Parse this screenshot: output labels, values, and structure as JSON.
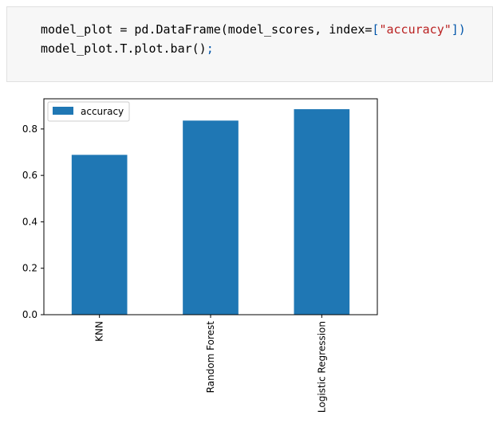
{
  "code_cell": {
    "line1": {
      "pre": "model_plot = pd.DataFrame(model_scores, index=",
      "bracket_open": "[",
      "string": "\"accuracy\"",
      "bracket_close": "])"
    },
    "line2": {
      "pre": "model_plot.T.plot.bar()",
      "semicolon": ";"
    }
  },
  "colors": {
    "bar": "#1f77b4",
    "cell_bg": "#f7f7f7",
    "string": "#ba2121"
  },
  "chart_data": {
    "type": "bar",
    "categories": [
      "KNN",
      "Random Forest",
      "Logistic Regression"
    ],
    "series": [
      {
        "name": "accuracy",
        "values": [
          0.6885,
          0.8361,
          0.8852
        ]
      }
    ],
    "title": "",
    "xlabel": "",
    "ylabel": "",
    "ylim": [
      0,
      0.93
    ],
    "yticks": [
      "0.0",
      "0.2",
      "0.4",
      "0.6",
      "0.8"
    ],
    "legend": {
      "label": "accuracy",
      "position": "top-left"
    },
    "grid": false
  }
}
